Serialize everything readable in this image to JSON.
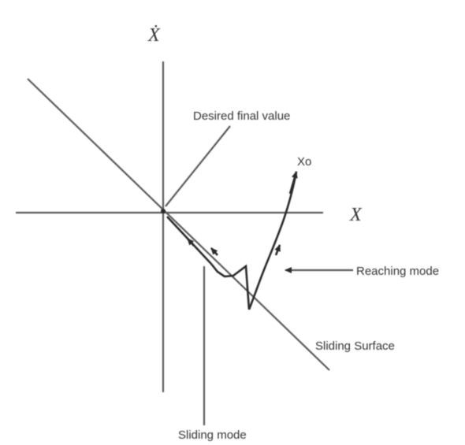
{
  "axes": {
    "x_label": "X",
    "y_label": "Ẋ"
  },
  "labels": {
    "desired_final_value": "Desired final value",
    "initial_state": "Xo",
    "reaching_mode": "Reaching mode",
    "sliding_surface": "Sliding Surface",
    "sliding_mode": "Sliding mode"
  },
  "colors": {
    "line": "#5a5a5a",
    "trajectory": "#2a2a2a",
    "text": "#333333",
    "background": "#ffffff"
  }
}
